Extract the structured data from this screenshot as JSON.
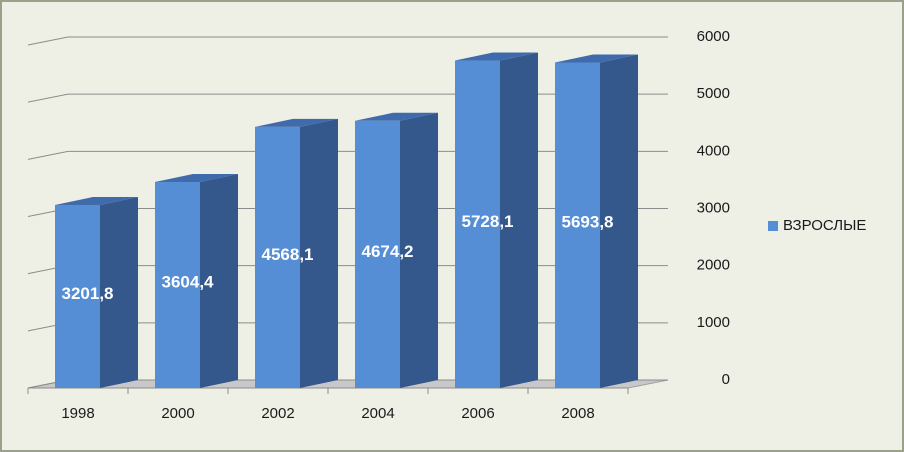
{
  "chart_data": {
    "type": "bar3d",
    "categories": [
      "1998",
      "2000",
      "2002",
      "2004",
      "2006",
      "2008"
    ],
    "series": [
      {
        "name": "ВЗРОСЛЫЕ",
        "color": "#558ed5",
        "values": [
          3201.8,
          3604.4,
          4568.1,
          4674.2,
          5728.1,
          5693.8
        ],
        "value_labels": [
          "3201,8",
          "3604,4",
          "4568,1",
          "4674,2",
          "5728,1",
          "5693,8"
        ]
      }
    ],
    "ylim": [
      0,
      6000
    ],
    "yticks": [
      0,
      1000,
      2000,
      3000,
      4000,
      5000,
      6000
    ],
    "grid": true,
    "y_axis_side": "right",
    "legend": "right"
  }
}
